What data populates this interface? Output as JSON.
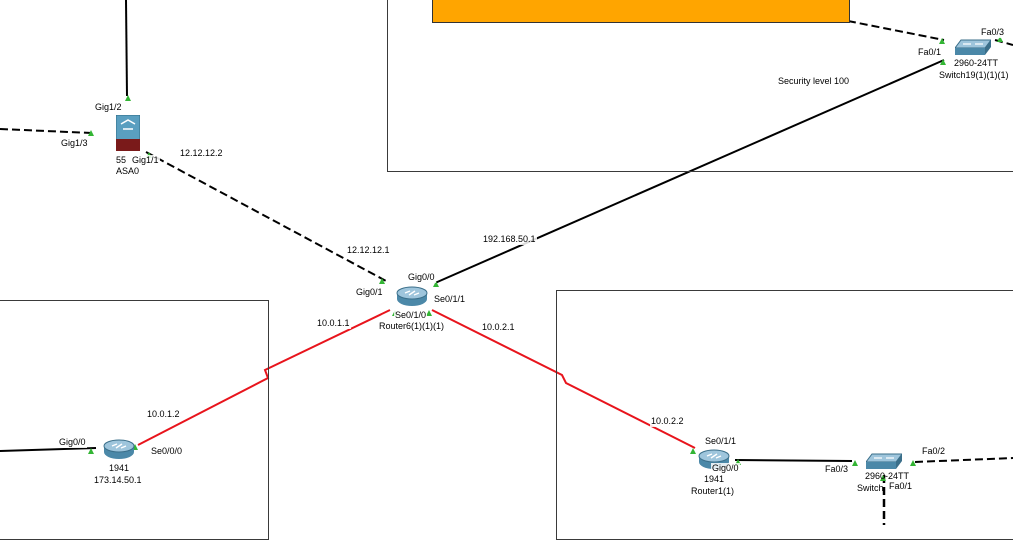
{
  "areas": {
    "security_label": "Security level 100"
  },
  "devices": {
    "asa": {
      "model": "55",
      "name": "ASA0"
    },
    "router_center": {
      "name": "Router6(1)(1)(1)"
    },
    "router_left": {
      "model": "1941",
      "name": "173.14.50.1"
    },
    "router_right": {
      "model": "1941",
      "name": "Router1(1)"
    },
    "switch_top": {
      "model": "2960-24TT",
      "name": "Switch19(1)(1)(1)"
    },
    "switch_bottom": {
      "model": "2960-24TT",
      "name": "Switch"
    }
  },
  "ports": {
    "asa_gig1_2": "Gig1/2",
    "asa_gig1_3": "Gig1/3",
    "asa_gig1_1": "Gig1/1",
    "rc_gig0_0": "Gig0/0",
    "rc_gig0_1": "Gig0/1",
    "rc_se0_1_1": "Se0/1/1",
    "rc_se0_1_0": "Se0/1/0",
    "rl_gig0_0": "Gig0/0",
    "rl_se0_0_0": "Se0/0/0",
    "rr_se0_1_1": "Se0/1/1",
    "rr_gig0_0": "Gig0/0",
    "st_fa0_1": "Fa0/1",
    "st_fa0_3": "Fa0/3",
    "sb_fa0_3": "Fa0/3",
    "sb_fa0_2": "Fa0/2",
    "sb_fa0_1": "Fa0/1"
  },
  "ips": {
    "asa_out": "12.12.12.2",
    "rc_in": "12.12.12.1",
    "rc_to_switch": "192.168.50.1",
    "rc_to_left": "10.0.1.1",
    "left_serial": "10.0.1.2",
    "rc_to_right": "10.0.2.1",
    "right_serial": "10.0.2.2"
  },
  "colors": {
    "ethernet": "#000000",
    "serial": "#e8141c",
    "port_up": "#33b534",
    "cloud_fill": "#ffa500",
    "device_blue": "#3b8fb5"
  }
}
